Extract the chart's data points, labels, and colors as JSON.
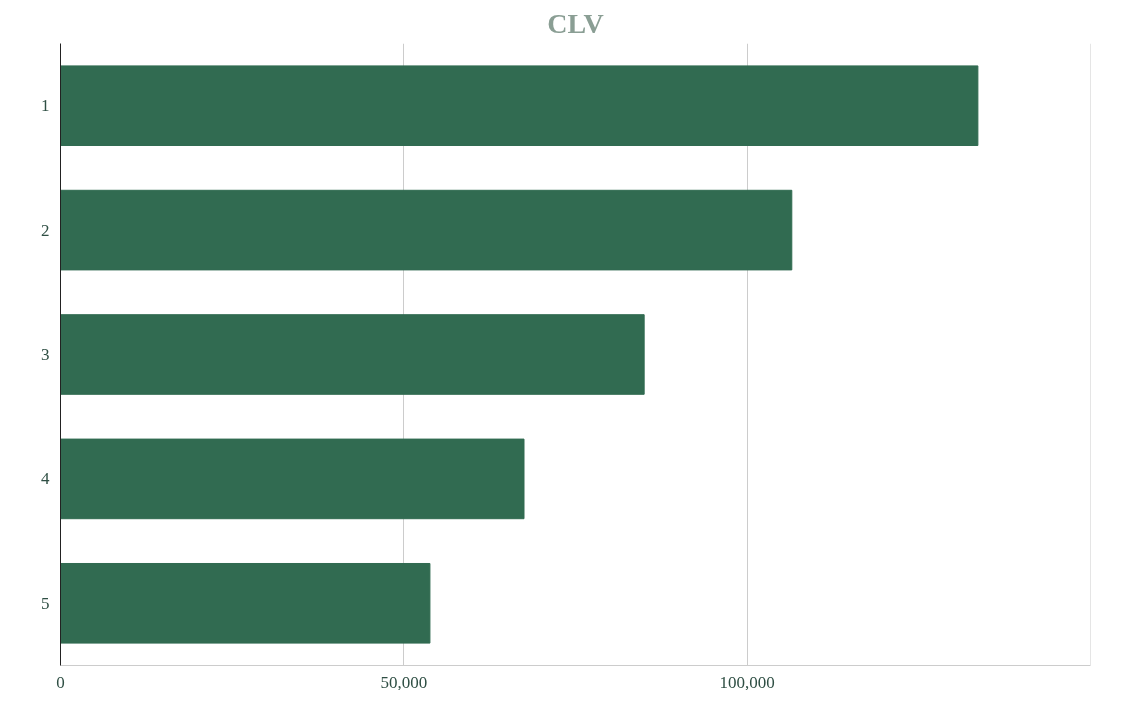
{
  "chart_data": {
    "type": "bar",
    "orientation": "horizontal",
    "title": "CLV",
    "categories": [
      "1",
      "2",
      "3",
      "4",
      "5"
    ],
    "values": [
      133600,
      106500,
      85000,
      67500,
      53800
    ],
    "color": "#316b51",
    "xlim": [
      0,
      150000
    ],
    "xticks": [
      {
        "value": 0,
        "label": "0"
      },
      {
        "value": 50000,
        "label": "50,000"
      },
      {
        "value": 100000,
        "label": "100,000"
      },
      {
        "value": 150000,
        "label": null
      }
    ],
    "grid": "x"
  }
}
